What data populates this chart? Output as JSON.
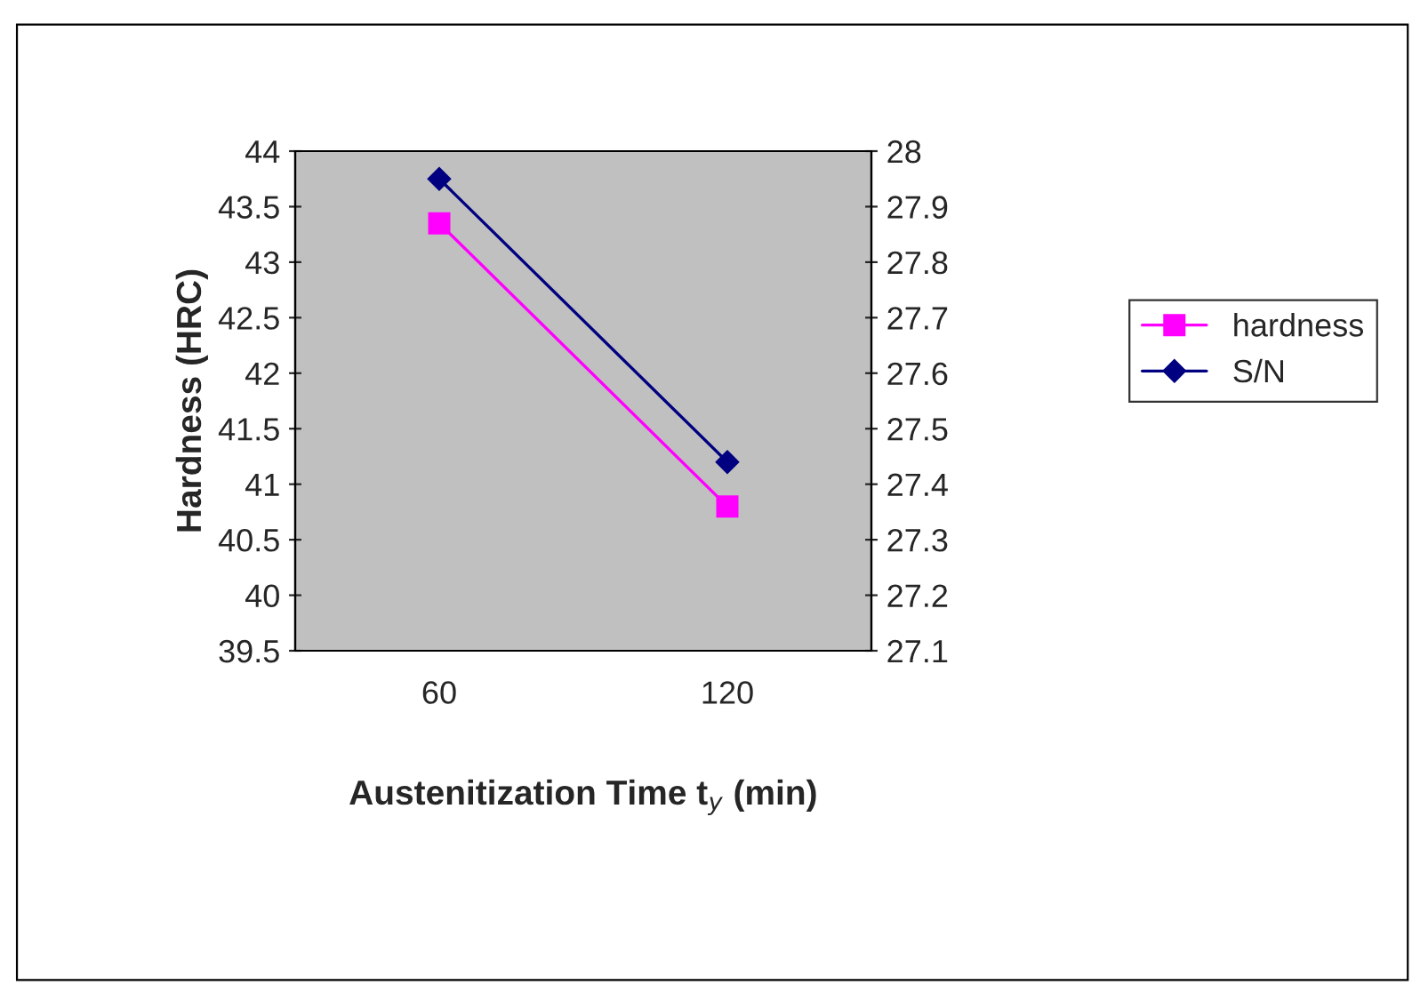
{
  "chart_data": {
    "type": "line",
    "categories": [
      "60",
      "120"
    ],
    "xlabel": "Austenitization Time t$_{y}$ (min)",
    "ylabel": "Hardness (HRC)",
    "ylim": [
      39.5,
      44
    ],
    "yticks": [
      39.5,
      40,
      40.5,
      41,
      41.5,
      42,
      42.5,
      43,
      43.5,
      44
    ],
    "y2lim": [
      27.1,
      28
    ],
    "y2ticks": [
      27.1,
      27.2,
      27.3,
      27.4,
      27.5,
      27.6,
      27.7,
      27.8,
      27.9,
      28
    ],
    "grid": false,
    "legend": "right",
    "series": [
      {
        "name": "hardness",
        "color": "#ff00ff",
        "values": [
          43.35,
          40.8
        ],
        "marker": "square"
      },
      {
        "name": "S/N",
        "color": "#000080",
        "values": [
          27.95,
          27.44
        ],
        "marker": "diamond",
        "axis": "y2"
      }
    ]
  }
}
